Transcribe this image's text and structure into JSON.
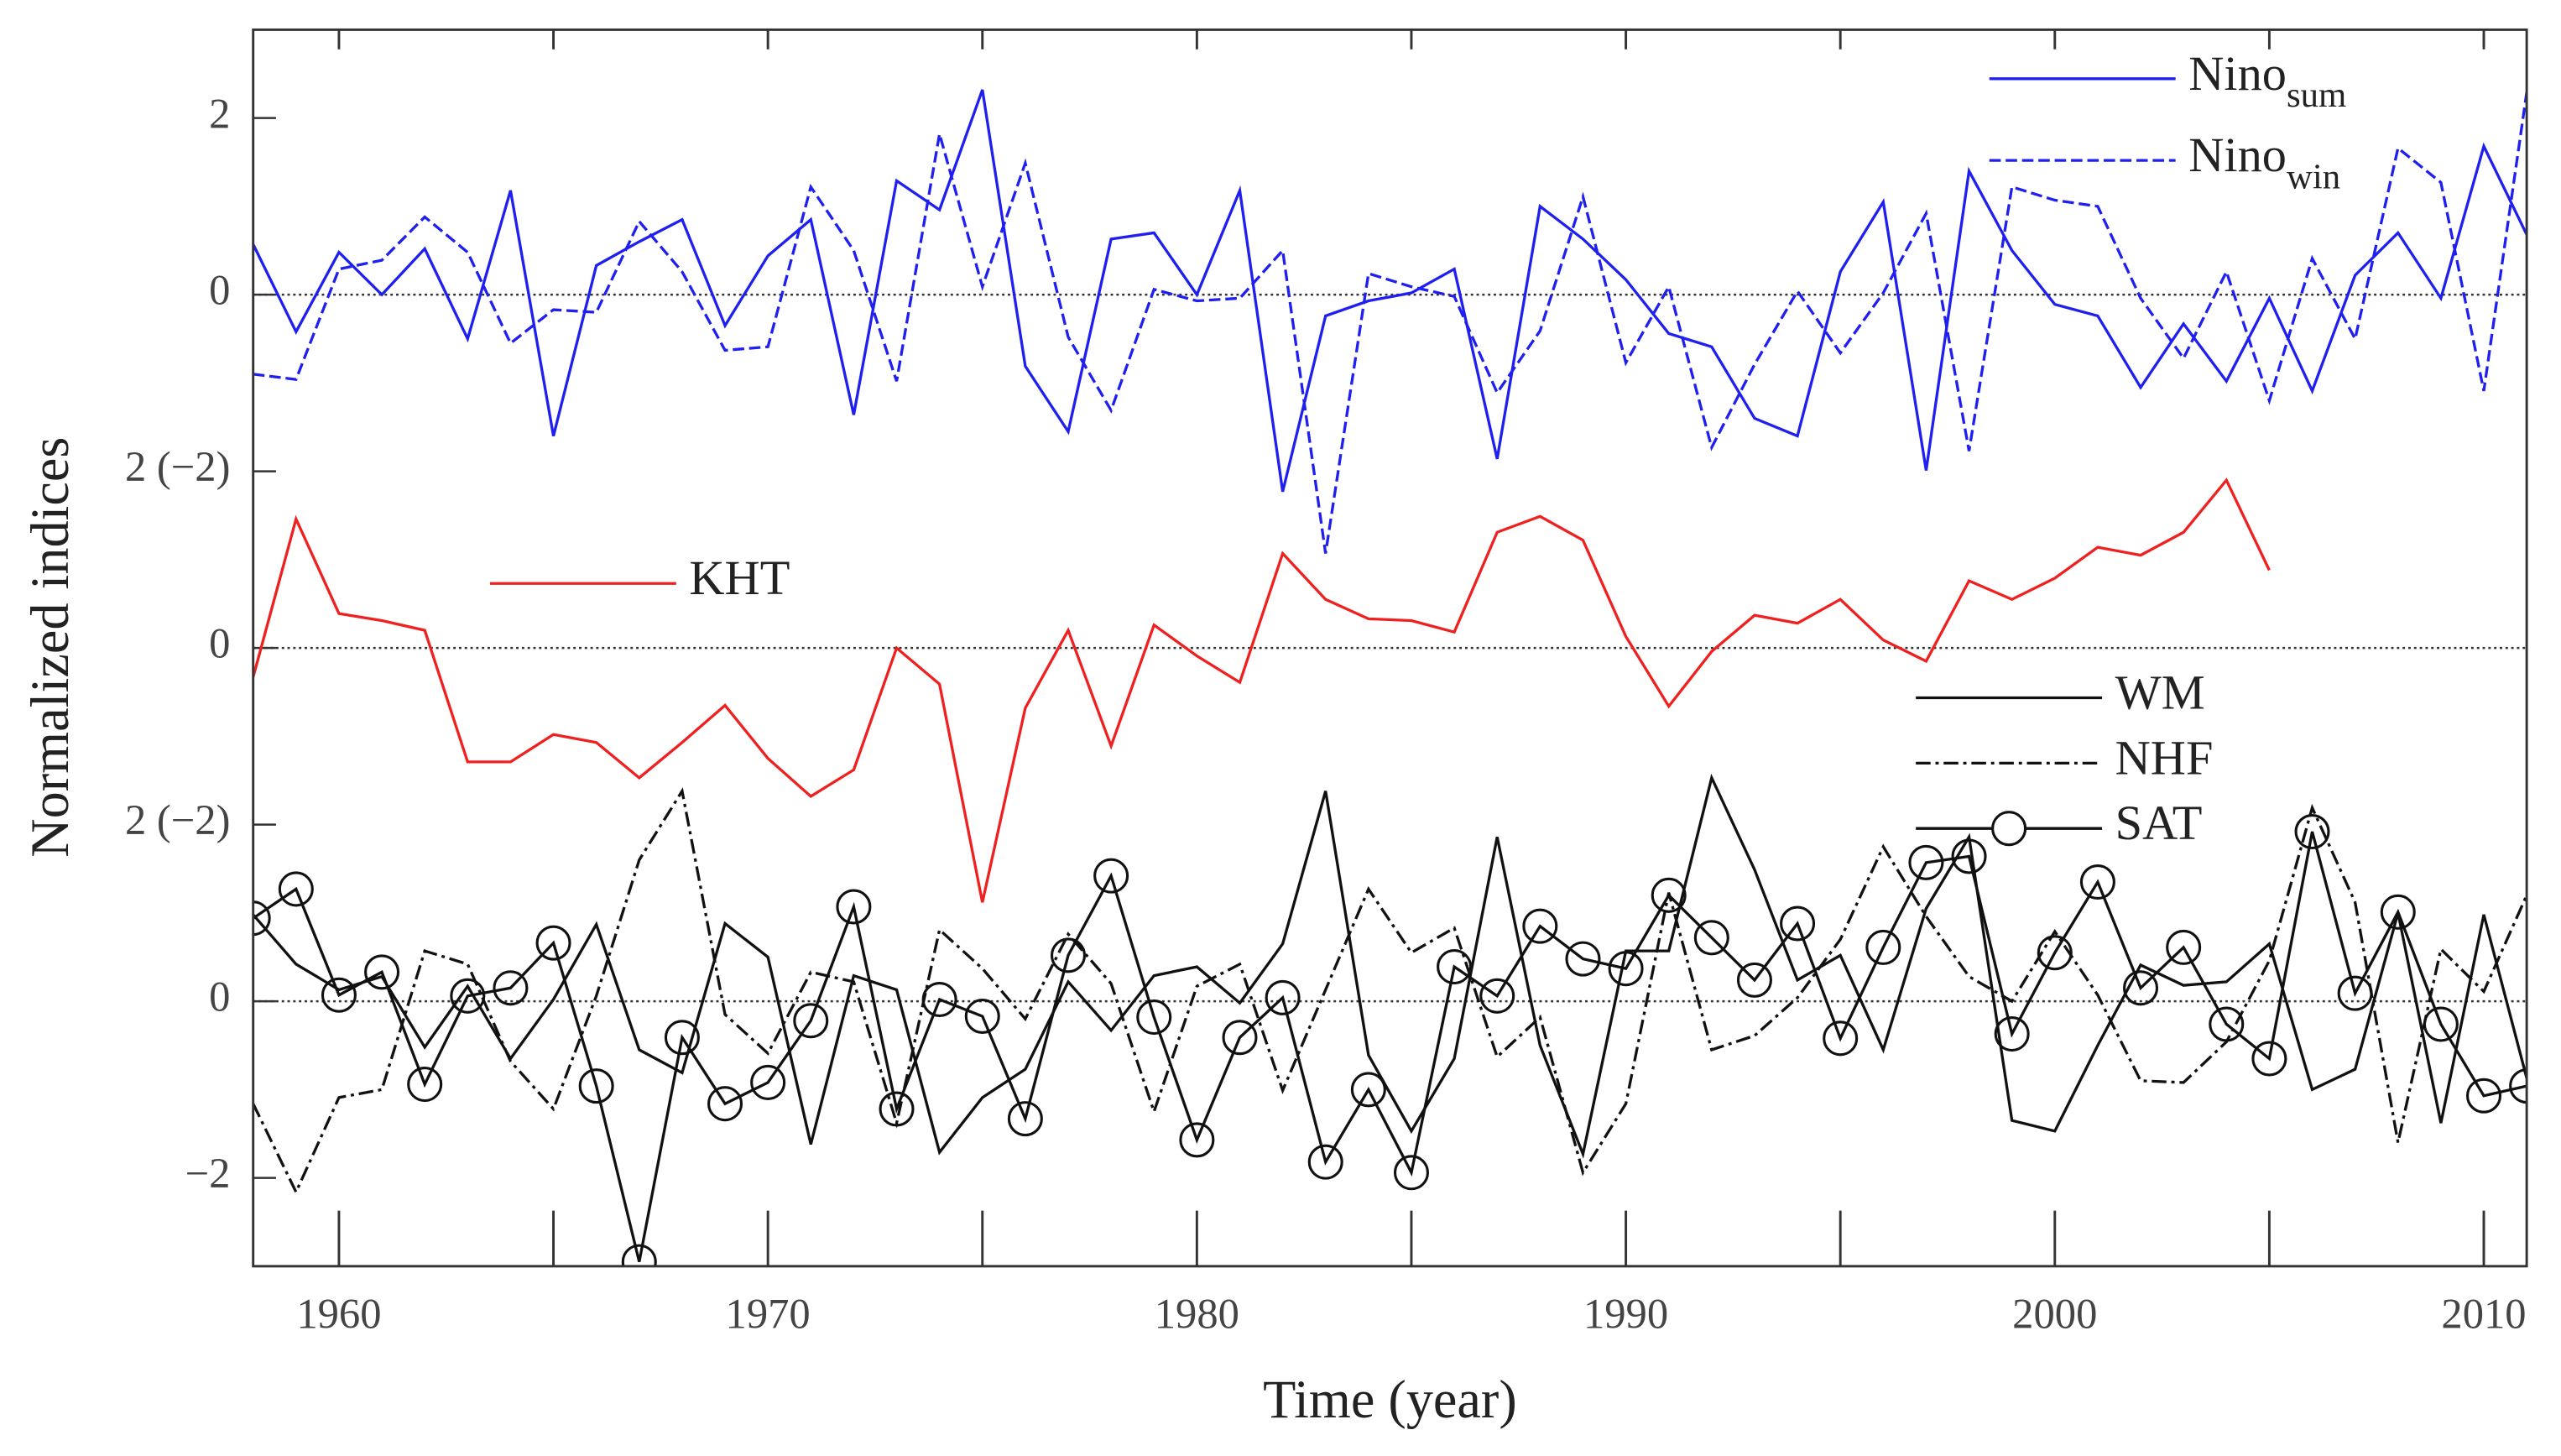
{
  "chart_data": {
    "type": "line",
    "xlabel": "Time (year)",
    "ylabel": "Normalized indices",
    "x": [
      1958,
      1959,
      1960,
      1961,
      1962,
      1963,
      1964,
      1965,
      1966,
      1967,
      1968,
      1969,
      1970,
      1971,
      1972,
      1973,
      1974,
      1975,
      1976,
      1977,
      1978,
      1979,
      1980,
      1981,
      1982,
      1983,
      1984,
      1985,
      1986,
      1987,
      1988,
      1989,
      1990,
      1991,
      1992,
      1993,
      1994,
      1995,
      1996,
      1997,
      1998,
      1999,
      2000,
      2001,
      2002,
      2003,
      2004,
      2005,
      2006,
      2007,
      2008,
      2009,
      2010,
      2011
    ],
    "xlim": [
      1958,
      2011
    ],
    "xticks": [
      1960,
      1970,
      1980,
      1990,
      2000,
      2010
    ],
    "xticks_minor": [
      1965,
      1975,
      1985,
      1995,
      2005
    ],
    "ylim": [
      -3,
      11
    ],
    "yticks": [
      {
        "value": -2,
        "label": "−2"
      },
      0,
      {
        "value": 2,
        "label": "2 (−2)"
      },
      {
        "value": 4,
        "label": "0"
      },
      {
        "value": 6,
        "label": "2 (−2)"
      },
      {
        "value": 8,
        "label": "0"
      },
      {
        "value": 10,
        "label": "2"
      }
    ],
    "hlines": [
      0,
      4,
      8
    ],
    "series": [
      {
        "name": "Nino",
        "name_sub": "sum",
        "color": "#1f1fef",
        "dash": "solid",
        "values": [
          8.57,
          7.58,
          8.48,
          8.0,
          8.52,
          7.5,
          9.18,
          6.4,
          8.33,
          8.6,
          8.85,
          7.65,
          8.44,
          8.85,
          6.64,
          9.29,
          8.96,
          10.32,
          7.19,
          6.45,
          8.63,
          8.7,
          8.0,
          9.18,
          5.77,
          7.76,
          7.93,
          8.02,
          8.29,
          6.14,
          9.0,
          8.63,
          8.17,
          7.56,
          7.41,
          6.6,
          6.4,
          8.26,
          9.05,
          6.01,
          9.4,
          8.5,
          7.89,
          7.76,
          6.95,
          7.67,
          7.02,
          7.96,
          6.91,
          8.22,
          8.7,
          7.96,
          9.68,
          8.68
        ]
      },
      {
        "name": "Nino",
        "name_sub": "win",
        "color": "#1f1fef",
        "dash": "dashed",
        "values": [
          7.1,
          7.04,
          8.29,
          8.39,
          8.88,
          8.48,
          7.45,
          7.83,
          7.8,
          8.83,
          8.26,
          7.37,
          7.41,
          9.22,
          8.5,
          7.02,
          9.82,
          8.09,
          9.49,
          7.52,
          6.69,
          8.06,
          7.93,
          7.96,
          8.5,
          5.07,
          8.24,
          8.09,
          7.98,
          6.89,
          7.59,
          9.11,
          7.23,
          8.09,
          6.27,
          7.21,
          8.04,
          7.34,
          8.02,
          8.92,
          6.23,
          9.22,
          9.07,
          9.0,
          7.96,
          7.28,
          8.26,
          6.8,
          8.41,
          7.5,
          9.66,
          9.27,
          6.91,
          10.29
        ]
      },
      {
        "name": "KHT",
        "color": "#ef2020",
        "dash": "solid",
        "values": [
          3.67,
          5.46,
          4.39,
          4.31,
          4.2,
          2.71,
          2.71,
          3.02,
          2.93,
          2.53,
          2.93,
          3.35,
          2.75,
          2.32,
          2.62,
          4.0,
          3.59,
          1.12,
          3.32,
          4.2,
          2.89,
          4.26,
          3.91,
          3.61,
          5.07,
          4.55,
          4.33,
          4.31,
          4.18,
          5.31,
          5.49,
          5.22,
          4.13,
          3.34,
          3.96,
          4.37,
          4.28,
          4.55,
          4.09,
          3.85,
          4.76,
          4.55,
          4.79,
          5.14,
          5.05,
          5.31,
          5.9,
          4.88,
          null,
          null,
          null,
          null,
          null,
          null
        ]
      },
      {
        "name": "WM",
        "color": "#111111",
        "dash": "solid",
        "values": [
          0.98,
          0.42,
          0.13,
          0.28,
          -0.52,
          0.17,
          -0.65,
          0.02,
          0.87,
          -0.55,
          -0.81,
          0.88,
          0.5,
          -1.62,
          0.29,
          0.13,
          -1.71,
          -1.09,
          -0.77,
          0.22,
          -0.33,
          0.29,
          0.39,
          -0.02,
          0.65,
          2.38,
          -0.61,
          -1.47,
          -0.65,
          1.86,
          -0.5,
          -1.73,
          0.57,
          0.57,
          2.53,
          1.49,
          0.24,
          0.52,
          -0.55,
          1.05,
          1.86,
          -1.35,
          -1.47,
          -0.5,
          0.41,
          0.18,
          0.22,
          0.65,
          -1.0,
          -0.77,
          1.0,
          -1.38,
          0.98,
          -0.87
        ]
      },
      {
        "name": "NHF",
        "color": "#111111",
        "dash": "dashdot",
        "values": [
          -1.16,
          -2.16,
          -1.09,
          -1.0,
          0.57,
          0.42,
          -0.68,
          -1.22,
          0.06,
          1.6,
          2.38,
          -0.15,
          -0.59,
          0.33,
          0.22,
          -1.38,
          0.81,
          0.37,
          -0.2,
          0.76,
          0.2,
          -1.25,
          0.17,
          0.42,
          -1.01,
          0.13,
          1.27,
          0.55,
          0.83,
          -0.63,
          -0.18,
          -1.94,
          -1.16,
          1.23,
          -0.55,
          -0.39,
          0.04,
          0.7,
          1.75,
          0.96,
          0.28,
          0.0,
          0.79,
          0.07,
          -0.9,
          -0.92,
          -0.46,
          0.46,
          2.19,
          1.12,
          -1.6,
          0.59,
          0.11,
          1.2
        ]
      },
      {
        "name": "SAT",
        "color": "#111111",
        "dash": "solid",
        "marker": "circle",
        "values": [
          0.94,
          1.27,
          0.07,
          0.33,
          -0.94,
          0.06,
          0.15,
          0.66,
          -0.96,
          -2.95,
          -0.41,
          -1.16,
          -0.92,
          -0.22,
          1.07,
          -1.22,
          0.02,
          -0.17,
          -1.33,
          0.52,
          1.42,
          -0.18,
          -1.57,
          -0.41,
          0.04,
          -1.82,
          -1.0,
          -1.94,
          0.39,
          0.06,
          0.85,
          0.48,
          0.37,
          1.2,
          0.72,
          0.24,
          0.88,
          -0.42,
          0.61,
          1.57,
          1.64,
          -0.37,
          0.55,
          1.35,
          0.15,
          0.61,
          -0.26,
          -0.65,
          1.92,
          0.09,
          1.01,
          -0.26,
          -1.07,
          -0.96
        ]
      }
    ]
  }
}
